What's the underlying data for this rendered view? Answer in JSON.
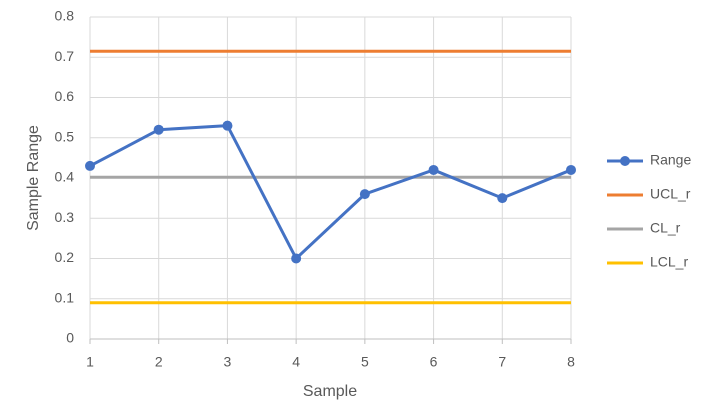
{
  "chart_data": {
    "type": "line",
    "x_label": "Sample",
    "y_label": "Sample Range",
    "x": [
      1,
      2,
      3,
      4,
      5,
      6,
      7,
      8
    ],
    "series": [
      {
        "name": "Range",
        "color": "#4472c4",
        "marker": "circle",
        "values": [
          0.43,
          0.52,
          0.53,
          0.2,
          0.36,
          0.42,
          0.35,
          0.42
        ]
      },
      {
        "name": "UCL_r",
        "color": "#ed7d31",
        "values": [
          0.715,
          0.715,
          0.715,
          0.715,
          0.715,
          0.715,
          0.715,
          0.715
        ]
      },
      {
        "name": "CL_r",
        "color": "#a5a5a5",
        "values": [
          0.402,
          0.402,
          0.402,
          0.402,
          0.402,
          0.402,
          0.402,
          0.402
        ]
      },
      {
        "name": "LCL_r",
        "color": "#ffc000",
        "values": [
          0.09,
          0.09,
          0.09,
          0.09,
          0.09,
          0.09,
          0.09,
          0.09
        ]
      }
    ],
    "xlim": [
      1,
      8
    ],
    "xticks": [
      1,
      2,
      3,
      4,
      5,
      6,
      7,
      8
    ],
    "ylim": [
      0,
      0.8
    ],
    "yticks": [
      0,
      0.1,
      0.2,
      0.3,
      0.4,
      0.5,
      0.6,
      0.7,
      0.8
    ],
    "grid": true,
    "legend": "right"
  }
}
